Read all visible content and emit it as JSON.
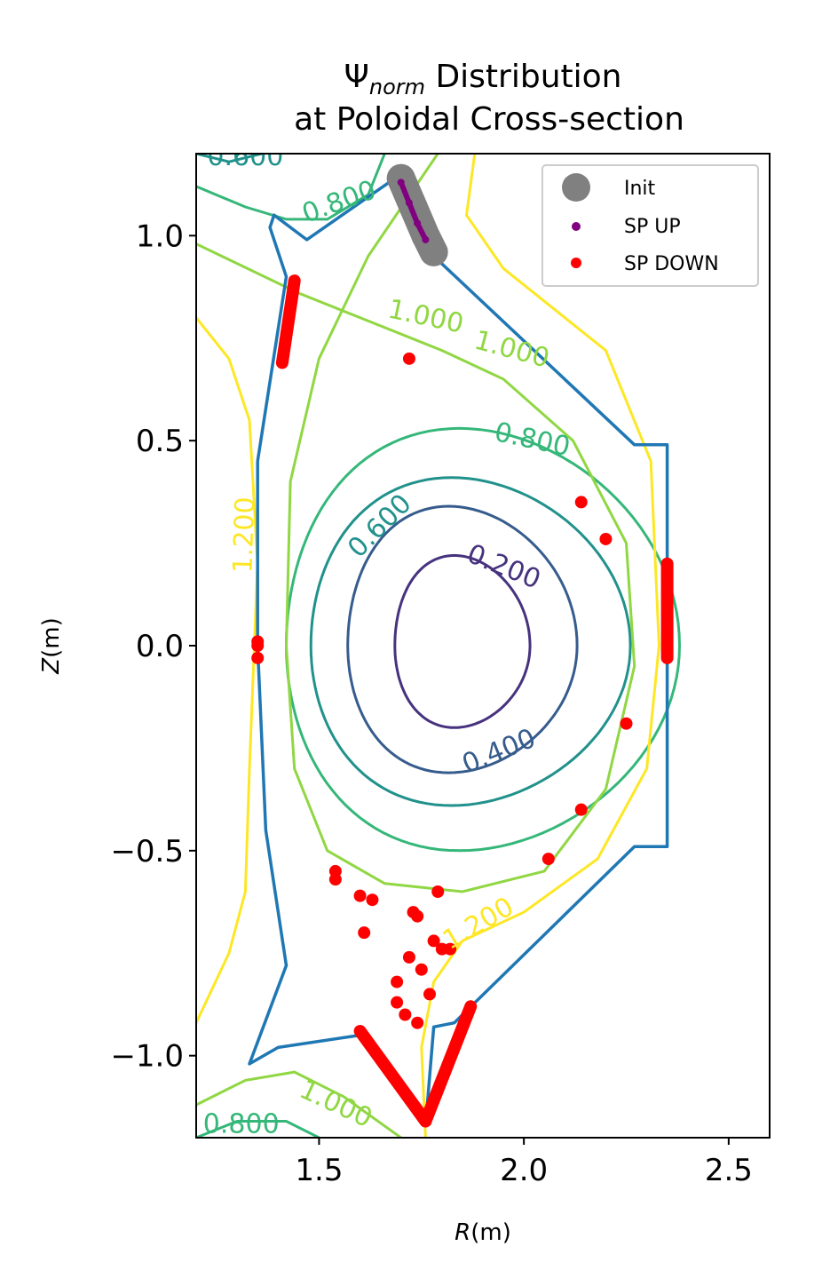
{
  "chart_data": {
    "type": "contour",
    "title_main": "Ψ",
    "title_sub": "norm",
    "title_rest": " Distribution",
    "title_line2": "at Poloidal Cross-section",
    "xlabel_var": "R",
    "xlabel_unit": "(m)",
    "ylabel_var": "Z",
    "ylabel_unit": "(m)",
    "xlim": [
      1.2,
      2.6
    ],
    "ylim": [
      -1.2,
      1.2
    ],
    "xticks": [
      1.5,
      2.0,
      2.5
    ],
    "xtick_labels": [
      "1.5",
      "2.0",
      "2.5"
    ],
    "yticks": [
      1.0,
      0.5,
      0.0,
      -0.5,
      -1.0
    ],
    "ytick_labels": [
      "1.0",
      "0.5",
      "0.0",
      "−0.5",
      "−1.0"
    ],
    "contour_levels": [
      {
        "level": 0.2,
        "color": "#46327e",
        "label": "0.200"
      },
      {
        "level": 0.4,
        "color": "#365c8d",
        "label": "0.400"
      },
      {
        "level": 0.6,
        "color": "#21918c",
        "label": "0.600"
      },
      {
        "level": 0.8,
        "color": "#35b779",
        "label": "0.800"
      },
      {
        "level": 1.0,
        "color": "#90d743",
        "label": "1.000"
      },
      {
        "level": 1.2,
        "color": "#fde725",
        "label": "1.200"
      }
    ],
    "core_contours": [
      {
        "level": 0.2,
        "r0": 1.85,
        "z0": 0.0,
        "a": 0.165,
        "kappa_up": 0.22,
        "kappa_down": 0.2
      },
      {
        "level": 0.4,
        "r0": 1.85,
        "z0": 0.0,
        "a": 0.28,
        "kappa_up": 0.34,
        "kappa_down": 0.31
      },
      {
        "level": 0.6,
        "r0": 1.87,
        "z0": 0.0,
        "a": 0.39,
        "kappa_up": 0.41,
        "kappa_down": 0.39
      },
      {
        "level": 0.8,
        "r0": 1.9,
        "z0": 0.0,
        "a": 0.48,
        "kappa_up": 0.53,
        "kappa_down": 0.5
      }
    ],
    "wall": [
      [
        1.35,
        0.45
      ],
      [
        1.42,
        0.9
      ],
      [
        1.38,
        1.02
      ],
      [
        1.39,
        1.05
      ],
      [
        1.47,
        0.99
      ],
      [
        1.7,
        1.15
      ],
      [
        1.78,
        0.95
      ],
      [
        2.27,
        0.49
      ],
      [
        2.35,
        0.49
      ],
      [
        2.35,
        -0.49
      ],
      [
        2.27,
        -0.49
      ],
      [
        1.83,
        -0.92
      ],
      [
        1.78,
        -0.93
      ],
      [
        1.76,
        -1.17
      ],
      [
        1.6,
        -0.95
      ],
      [
        1.4,
        -0.98
      ],
      [
        1.33,
        -1.02
      ],
      [
        1.42,
        -0.78
      ],
      [
        1.37,
        -0.45
      ],
      [
        1.35,
        0.0
      ],
      [
        1.35,
        0.45
      ]
    ],
    "wall_color": "#1f77b4",
    "legend": [
      {
        "label": "Init",
        "color": "#808080",
        "marker": "large"
      },
      {
        "label": "SP UP",
        "color": "#800080",
        "marker": "small"
      },
      {
        "label": "SP DOWN",
        "color": "#ff0000",
        "marker": "small"
      }
    ],
    "init_points": [
      [
        1.7,
        1.14
      ],
      [
        1.73,
        1.07
      ],
      [
        1.76,
        1.0
      ],
      [
        1.78,
        0.96
      ]
    ],
    "sp_up_points": [
      [
        1.7,
        1.13
      ],
      [
        1.72,
        1.08
      ],
      [
        1.74,
        1.03
      ],
      [
        1.76,
        0.99
      ]
    ],
    "sp_down_points": [
      [
        1.72,
        0.7
      ],
      [
        2.14,
        0.35
      ],
      [
        2.2,
        0.26
      ],
      [
        2.25,
        -0.19
      ],
      [
        2.14,
        -0.4
      ],
      [
        2.06,
        -0.52
      ],
      [
        1.54,
        -0.55
      ],
      [
        1.54,
        -0.57
      ],
      [
        1.6,
        -0.61
      ],
      [
        1.63,
        -0.62
      ],
      [
        1.61,
        -0.7
      ],
      [
        1.73,
        -0.65
      ],
      [
        1.74,
        -0.66
      ],
      [
        1.79,
        -0.6
      ],
      [
        1.78,
        -0.72
      ],
      [
        1.8,
        -0.74
      ],
      [
        1.82,
        -0.74
      ],
      [
        1.72,
        -0.76
      ],
      [
        1.75,
        -0.79
      ],
      [
        1.69,
        -0.82
      ],
      [
        1.77,
        -0.85
      ],
      [
        1.69,
        -0.87
      ],
      [
        1.71,
        -0.9
      ],
      [
        1.74,
        -0.92
      ],
      [
        1.35,
        0.0
      ],
      [
        1.35,
        -0.03
      ],
      [
        1.35,
        0.01
      ]
    ],
    "sp_down_strips": [
      [
        [
          1.41,
          0.69
        ],
        [
          1.44,
          0.89
        ]
      ],
      [
        [
          2.35,
          0.2
        ],
        [
          2.35,
          -0.03
        ]
      ],
      [
        [
          1.6,
          -0.94
        ],
        [
          1.76,
          -1.16
        ]
      ],
      [
        [
          1.76,
          -1.16
        ],
        [
          1.87,
          -0.88
        ]
      ]
    ]
  }
}
